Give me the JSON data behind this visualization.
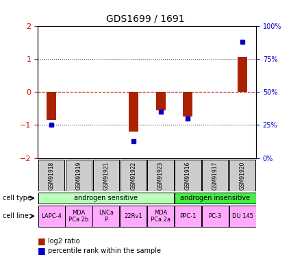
{
  "title": "GDS1699 / 1691",
  "samples": [
    "GSM91918",
    "GSM91919",
    "GSM91921",
    "GSM91922",
    "GSM91923",
    "GSM91916",
    "GSM91917",
    "GSM91920"
  ],
  "log2_ratio": [
    -0.85,
    0.0,
    0.0,
    -1.2,
    -0.55,
    -0.75,
    0.0,
    1.05
  ],
  "percentile_rank": [
    25,
    50,
    50,
    13,
    35,
    30,
    50,
    88
  ],
  "plot_log2": [
    true,
    false,
    false,
    true,
    true,
    true,
    false,
    true
  ],
  "plot_pct": [
    true,
    false,
    false,
    true,
    true,
    true,
    false,
    true
  ],
  "ylim_left": [
    -2,
    2
  ],
  "ylim_right": [
    0,
    100
  ],
  "cell_type_labels": [
    {
      "label": "androgen sensitive",
      "start": 0,
      "end": 5,
      "color": "#bbffbb"
    },
    {
      "label": "androgen insensitive",
      "start": 5,
      "end": 8,
      "color": "#44ee44"
    }
  ],
  "cell_line_labels": [
    {
      "label": "LAPC-4",
      "start": 0,
      "end": 1
    },
    {
      "label": "MDA\nPCa 2b",
      "start": 1,
      "end": 2
    },
    {
      "label": "LNCa\nP",
      "start": 2,
      "end": 3
    },
    {
      "label": "22Rv1",
      "start": 3,
      "end": 4
    },
    {
      "label": "MDA\nPCa 2a",
      "start": 4,
      "end": 5
    },
    {
      "label": "PPC-1",
      "start": 5,
      "end": 6
    },
    {
      "label": "PC-3",
      "start": 6,
      "end": 7
    },
    {
      "label": "DU 145",
      "start": 7,
      "end": 8
    }
  ],
  "cell_line_color": "#ffaaff",
  "bar_color": "#aa2200",
  "dot_color": "#0000cc",
  "gsm_bg_color": "#cccccc",
  "tick_label_color_left": "#cc0000",
  "tick_label_color_right": "#0000cc",
  "dotted_line_color": "#444444",
  "zero_line_color": "#cc0000"
}
